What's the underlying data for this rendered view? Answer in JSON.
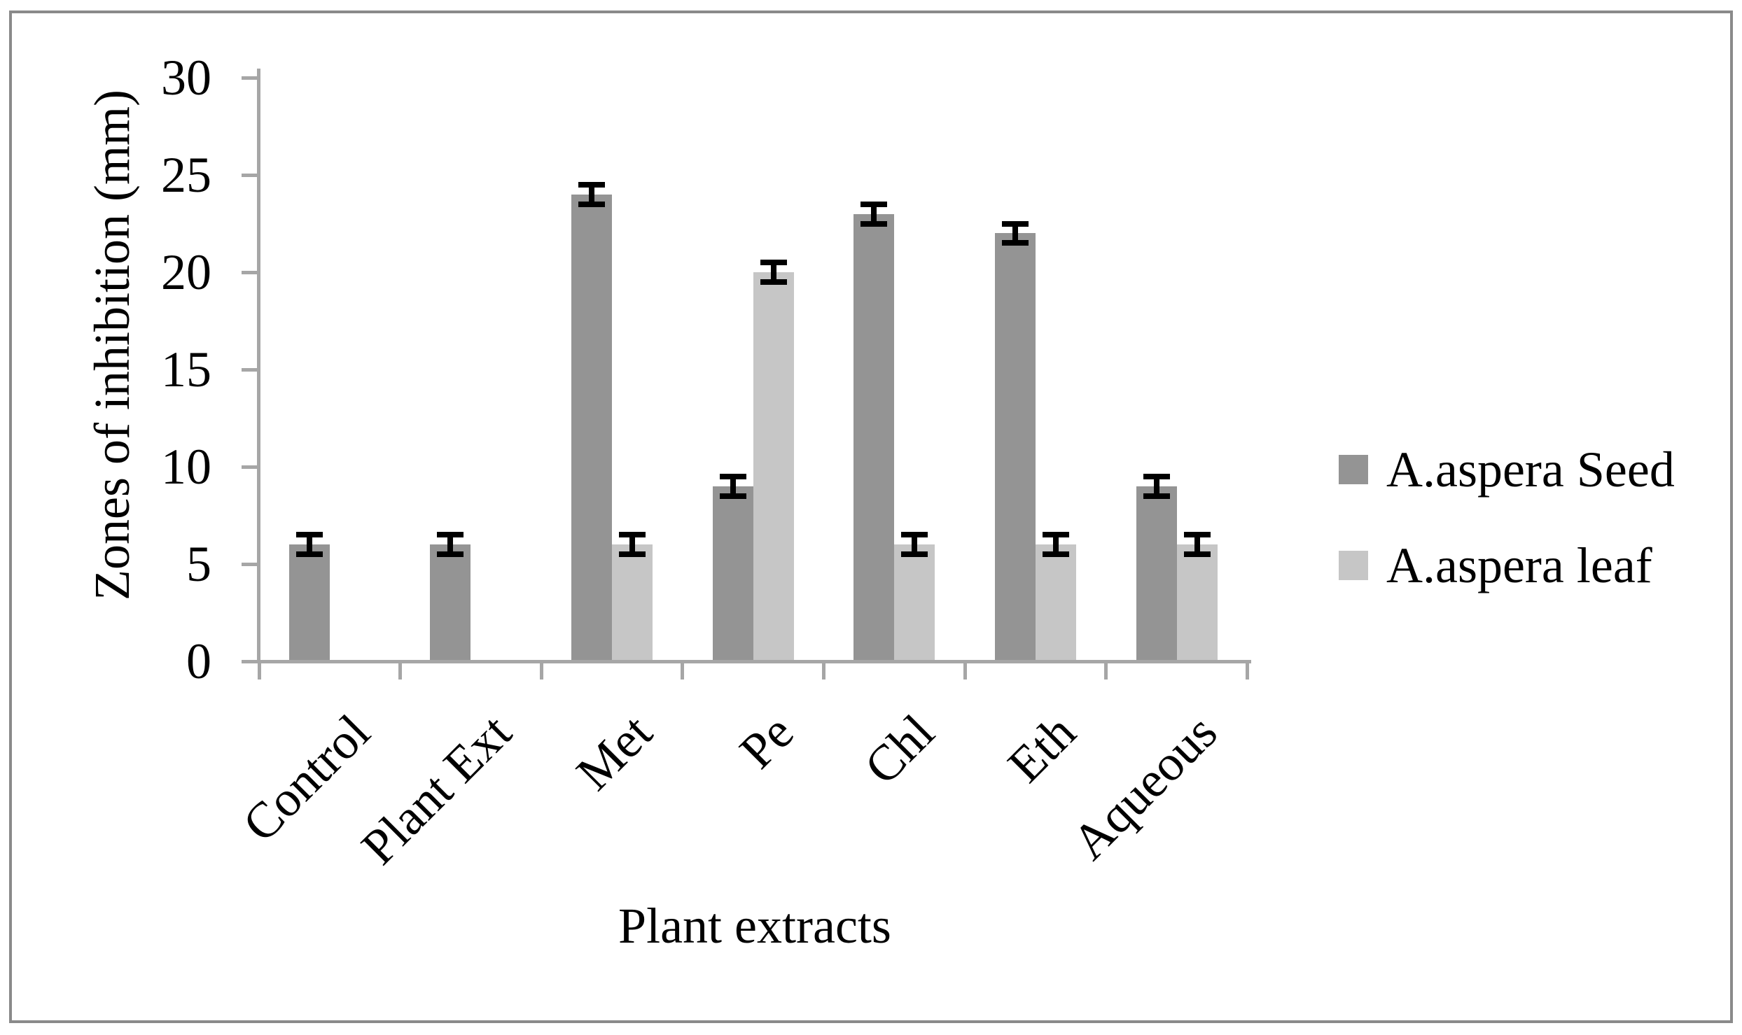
{
  "chart_data": {
    "type": "bar",
    "title": "",
    "xlabel": "Plant extracts",
    "ylabel": "Zones of inhibition (mm)",
    "categories": [
      "Control",
      "Plant Ext",
      "Met",
      "Pe",
      "Chl",
      "Eth",
      "Aqueous"
    ],
    "series": [
      {
        "name": "A.aspera Seed",
        "color": "#949494",
        "values": [
          6,
          6,
          24,
          9,
          23,
          22,
          9
        ],
        "errors": [
          0.5,
          0.5,
          0.5,
          0.5,
          0.5,
          0.5,
          0.5
        ]
      },
      {
        "name": "A.aspera leaf",
        "color": "#C6C6C6",
        "values": [
          0,
          0,
          6,
          20,
          6,
          6,
          6
        ],
        "errors": [
          0,
          0,
          0.5,
          0.5,
          0.5,
          0.5,
          0.5
        ]
      }
    ],
    "ylim": [
      0,
      30
    ],
    "yticks": [
      0,
      5,
      10,
      15,
      20,
      25,
      30
    ],
    "grid": false,
    "legend_position": "right-middle",
    "error_bar_color": "#000000",
    "axis_color": "#A6A6A6",
    "text_color": "#000000",
    "frame_color": "#8A8A8A"
  }
}
